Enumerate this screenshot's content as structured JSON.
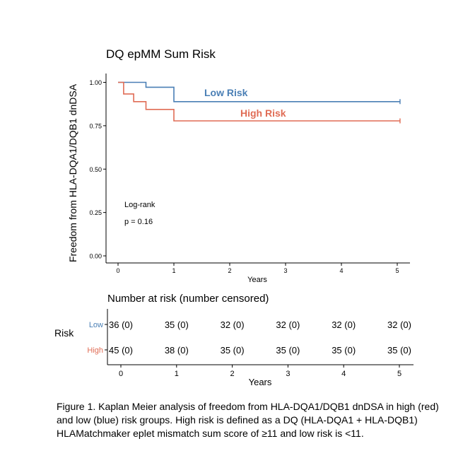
{
  "chart_data": [
    {
      "type": "line",
      "subtype": "kaplan-meier",
      "title": "DQ epMM Sum Risk",
      "xlabel": "Years",
      "ylabel": "Freedom from HLA-DQA1/DQB1 dnDSA",
      "xlim": [
        0,
        5.2
      ],
      "ylim": [
        0,
        1.0
      ],
      "x_ticks": [
        0,
        1,
        2,
        3,
        4,
        5
      ],
      "y_ticks": [
        0.0,
        0.25,
        0.5,
        0.75,
        1.0
      ],
      "y_tick_labels": [
        "0.00",
        "0.25",
        "0.50",
        "0.75",
        "1.00"
      ],
      "grid": false,
      "annotation": [
        "Log-rank",
        "p = 0.16"
      ],
      "series": [
        {
          "name": "Low Risk",
          "color": "#4a7fb5",
          "x": [
            0,
            0.5,
            0.5,
            1.0,
            1.0,
            5.05
          ],
          "y": [
            1.0,
            1.0,
            0.972,
            0.972,
            0.889,
            0.889
          ],
          "censor_x": [
            5.05
          ]
        },
        {
          "name": "High Risk",
          "color": "#e06c55",
          "x": [
            0,
            0.1,
            0.1,
            0.28,
            0.28,
            0.5,
            0.5,
            1.0,
            1.0,
            5.05
          ],
          "y": [
            1.0,
            1.0,
            0.933,
            0.933,
            0.889,
            0.889,
            0.844,
            0.844,
            0.778,
            0.778
          ],
          "censor_x": [
            5.05
          ]
        }
      ]
    },
    {
      "type": "table",
      "title": "Number at risk (number censored)",
      "row_title": "Risk",
      "xlabel": "Years",
      "x_ticks": [
        0,
        1,
        2,
        3,
        4,
        5
      ],
      "rows": [
        {
          "name": "Low",
          "color": "#4a7fb5",
          "values": [
            "36 (0)",
            "35 (0)",
            "32 (0)",
            "32 (0)",
            "32 (0)",
            "32 (0)"
          ]
        },
        {
          "name": "High",
          "color": "#e06c55",
          "values": [
            "45 (0)",
            "38 (0)",
            "35 (0)",
            "35 (0)",
            "35 (0)",
            "35 (0)"
          ]
        }
      ]
    }
  ],
  "caption": "Figure 1. Kaplan Meier analysis of freedom from HLA-DQA1/DQB1 dnDSA in high (red) and low (blue) risk groups. High risk is defined as a DQ (HLA-DQA1 + HLA-DQB1) HLAMatchmaker eplet mismatch sum score of ≥11 and low risk is <11."
}
